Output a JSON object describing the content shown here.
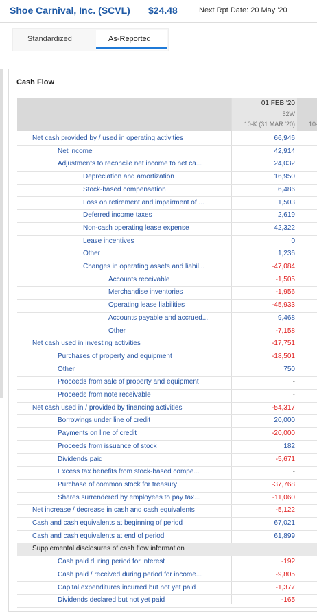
{
  "header": {
    "company": "Shoe Carnival, Inc. (SCVL)",
    "price": "$24.48",
    "next_report": "Next Rpt Date: 20 May '20"
  },
  "tabs": [
    "Standardized",
    "As-Reported"
  ],
  "section_title": "Cash Flow",
  "table": {
    "columns": [
      {
        "date": "01 FEB '20",
        "period": "52W",
        "filing": "10-K (31 MAR '20)"
      },
      {
        "filing": "10-"
      }
    ],
    "rows": [
      [
        "Net cash provided by / used in operating activities",
        "66,946"
      ],
      [
        "Net income",
        "42,914"
      ],
      [
        "Adjustments to reconcile net income to net ca...",
        "24,032"
      ],
      [
        "Depreciation and amortization",
        "16,950"
      ],
      [
        "Stock-based compensation",
        "6,486"
      ],
      [
        "Loss on retirement and impairment of ...",
        "1,503"
      ],
      [
        "Deferred income taxes",
        "2,619"
      ],
      [
        "Non-cash operating lease expense",
        "42,322"
      ],
      [
        "Lease incentives",
        "0"
      ],
      [
        "Other",
        "1,236"
      ],
      [
        "Changes in operating assets and liabil...",
        "-47,084"
      ],
      [
        "Accounts receivable",
        "-1,505"
      ],
      [
        "Merchandise inventories",
        "-1,956"
      ],
      [
        "Operating lease liabilities",
        "-45,933"
      ],
      [
        "Accounts payable and accrued...",
        "9,468"
      ],
      [
        "Other",
        "-7,158"
      ],
      [
        "Net cash used in investing activities",
        "-17,751"
      ],
      [
        "Purchases of property and equipment",
        "-18,501"
      ],
      [
        "Other",
        "750"
      ],
      [
        "Proceeds from sale of property and equipment",
        "-"
      ],
      [
        "Proceeds from note receivable",
        "-"
      ],
      [
        "Net cash used in / provided by financing activities",
        "-54,317"
      ],
      [
        "Borrowings under line of credit",
        "20,000"
      ],
      [
        "Payments on line of credit",
        "-20,000"
      ],
      [
        "Proceeds from issuance of stock",
        "182"
      ],
      [
        "Dividends paid",
        "-5,671"
      ],
      [
        "Excess tax benefits from stock-based compe...",
        "-"
      ],
      [
        "Purchase of common stock for treasury",
        "-37,768"
      ],
      [
        "Shares surrendered by employees to pay tax...",
        "-11,060"
      ],
      [
        "Net increase / decrease in cash and cash equivalents",
        "-5,122"
      ],
      [
        "Cash and cash equivalents at beginning of period",
        "67,021"
      ],
      [
        "Cash and cash equivalents at end of period",
        "61,899"
      ],
      [
        "Supplemental disclosures of cash flow information"
      ],
      [
        "Cash paid during period for interest",
        "-192"
      ],
      [
        "Cash paid / received during period for income...",
        "-9,805"
      ],
      [
        "Capital expenditures incurred but not yet paid",
        "-1,377"
      ],
      [
        "Dividends declared but not yet paid",
        "-165"
      ]
    ]
  }
}
